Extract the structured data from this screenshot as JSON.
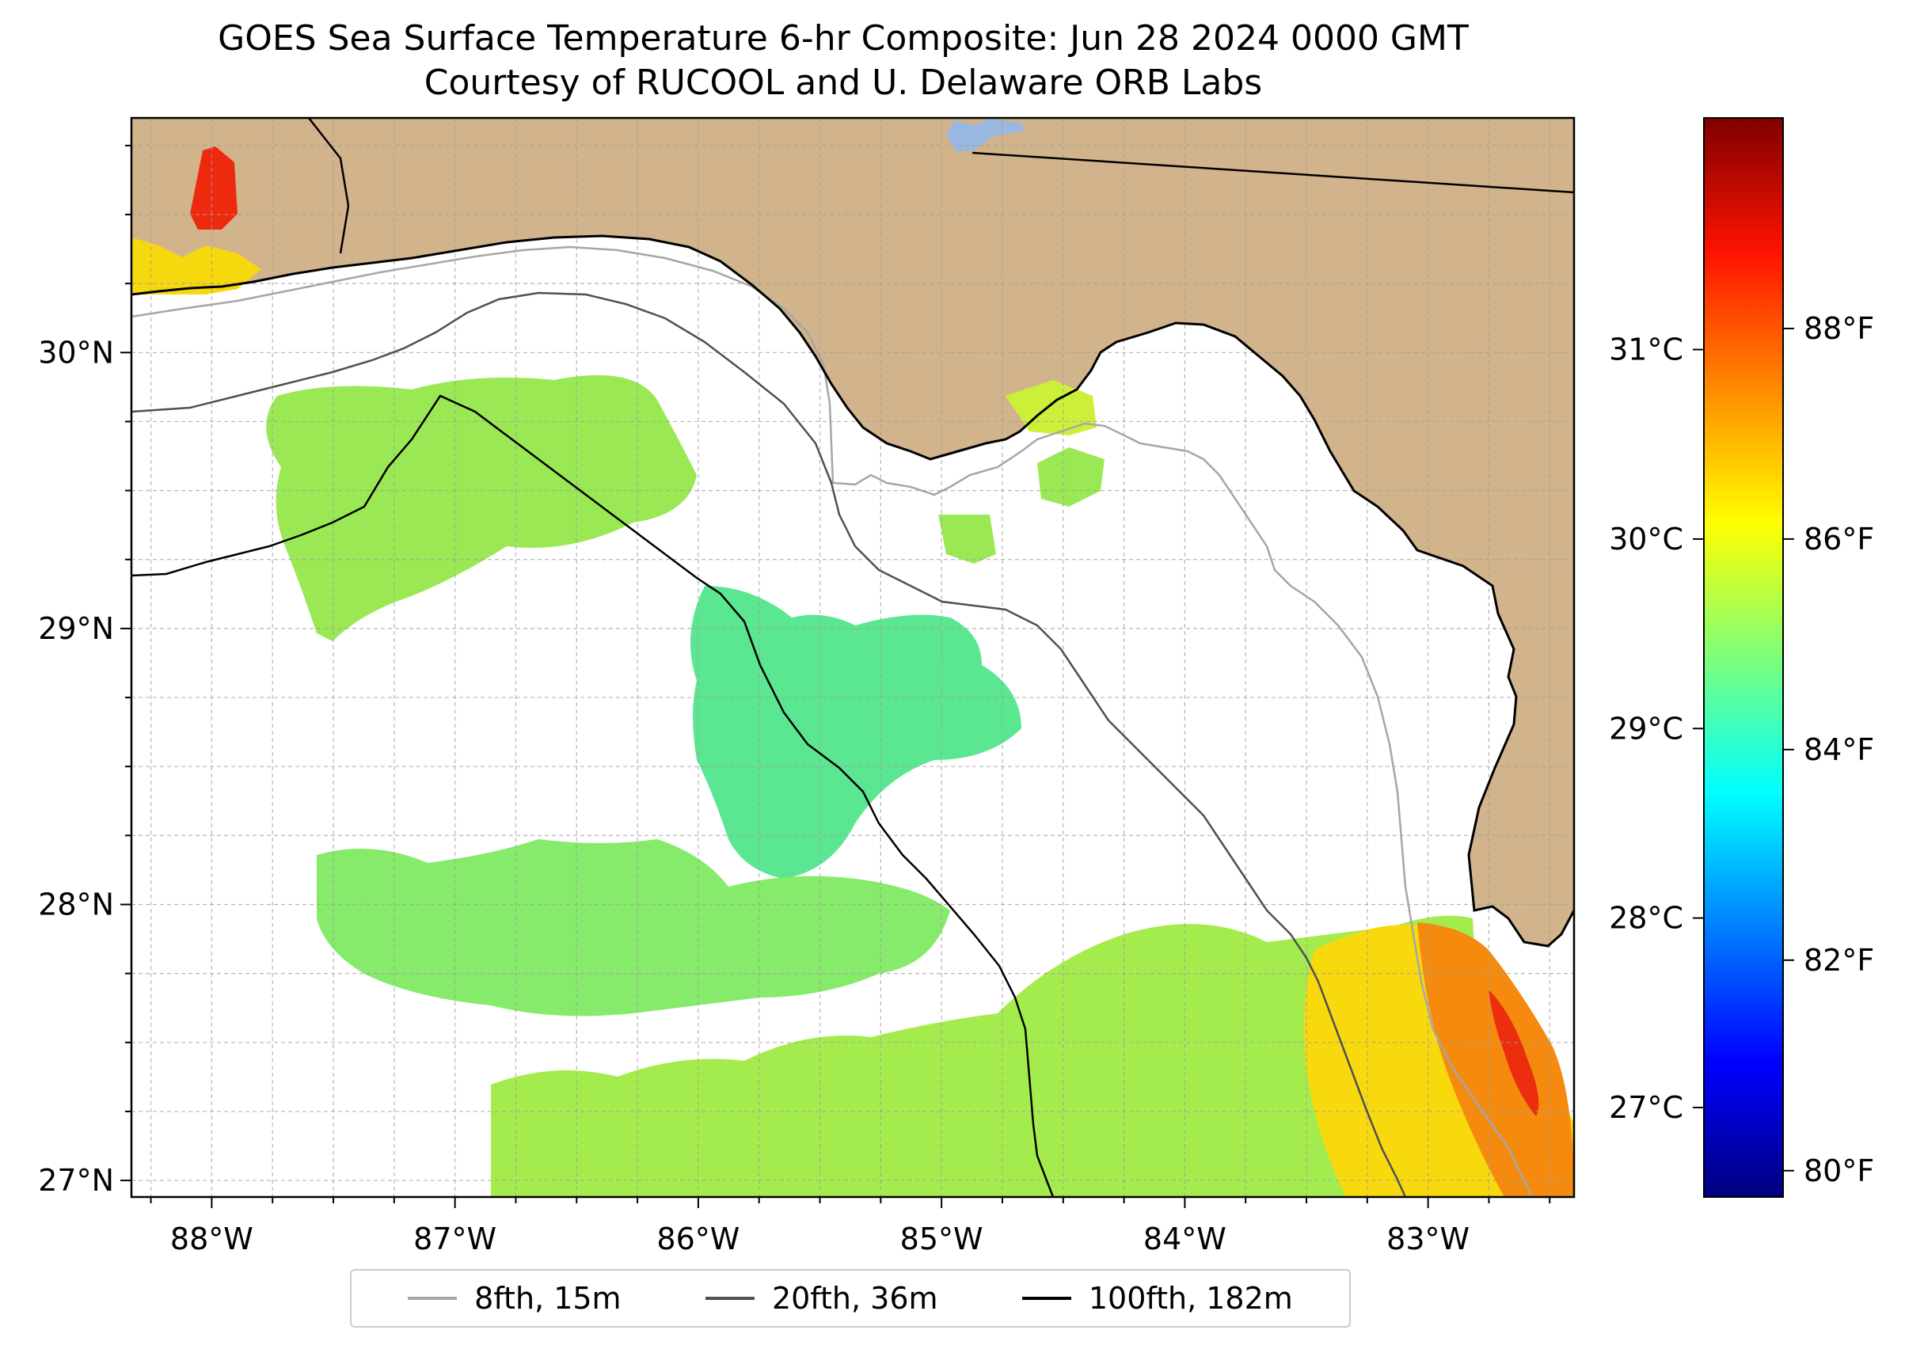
{
  "title_line1": "GOES Sea Surface Temperature 6-hr Composite: Jun 28 2024 0000 GMT",
  "title_line2": "Courtesy of RUCOOL and U. Delaware ORB Labs",
  "map": {
    "lon_range": [
      -88.33,
      -82.4
    ],
    "lat_range": [
      26.94,
      30.85
    ],
    "lon_ticks": [
      {
        "value": -88,
        "label": "88°W"
      },
      {
        "value": -87,
        "label": "87°W"
      },
      {
        "value": -86,
        "label": "86°W"
      },
      {
        "value": -85,
        "label": "85°W"
      },
      {
        "value": -84,
        "label": "84°W"
      },
      {
        "value": -83,
        "label": "83°W"
      }
    ],
    "lat_ticks": [
      {
        "value": 27,
        "label": "27°N"
      },
      {
        "value": 28,
        "label": "28°N"
      },
      {
        "value": 29,
        "label": "29°N"
      },
      {
        "value": 30,
        "label": "30°N"
      }
    ],
    "grid": true,
    "land_color": "#d2b48c",
    "water_color": "#ffffff",
    "lake_color": "#9ab8df"
  },
  "colorbar": {
    "colormap": "jet",
    "celsius_ticks": [
      {
        "value": 27,
        "label": "27°C"
      },
      {
        "value": 28,
        "label": "28°C"
      },
      {
        "value": 29,
        "label": "29°C"
      },
      {
        "value": 30,
        "label": "30°C"
      },
      {
        "value": 31,
        "label": "31°C"
      }
    ],
    "fahrenheit_ticks": [
      {
        "value": 80,
        "label": "80°F"
      },
      {
        "value": 82,
        "label": "82°F"
      },
      {
        "value": 84,
        "label": "84°F"
      },
      {
        "value": 86,
        "label": "86°F"
      },
      {
        "value": 88,
        "label": "88°F"
      }
    ],
    "fahrenheit_range": [
      79.75,
      90.0
    ]
  },
  "legend": [
    {
      "label": "8fth, 15m",
      "color": "#a6a6a6"
    },
    {
      "label": "20fth, 36m",
      "color": "#505050"
    },
    {
      "label": "100fth, 182m",
      "color": "#000000"
    }
  ]
}
